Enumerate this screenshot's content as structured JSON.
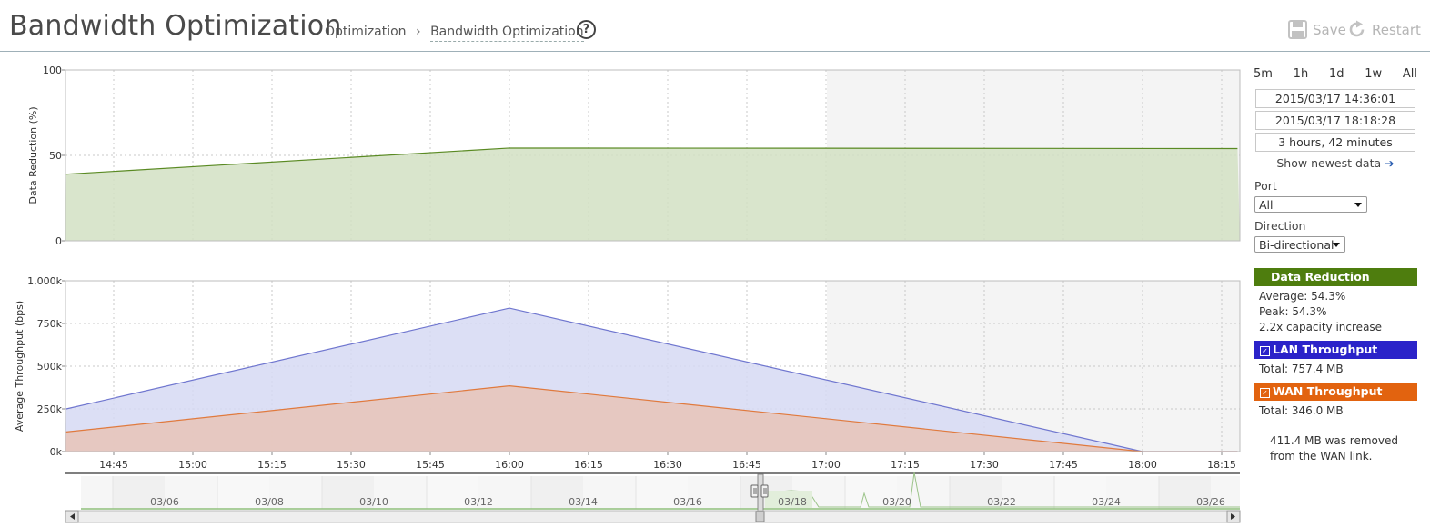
{
  "header": {
    "title": "Bandwidth Optimization",
    "breadcrumb": [
      "Optimization",
      "Bandwidth Optimization"
    ],
    "breadcrumb_separator": "›",
    "help_glyph": "?",
    "save_label": "Save",
    "restart_label": "Restart"
  },
  "time_controls": {
    "ranges": [
      "5m",
      "1h",
      "1d",
      "1w",
      "All"
    ],
    "start": "2015/03/17 14:36:01",
    "end": "2015/03/17 18:18:28",
    "duration": "3 hours, 42 minutes",
    "show_newest": "Show newest data",
    "show_newest_arrow": "➔"
  },
  "filters": {
    "port_label": "Port",
    "port_value": "All",
    "direction_label": "Direction",
    "direction_value": "Bi-directional"
  },
  "legend": {
    "data_reduction": {
      "title": "Data Reduction",
      "color": "#4e7d0e",
      "lines": [
        "Average: 54.3%",
        "Peak: 54.3%",
        "2.2x capacity increase"
      ]
    },
    "lan": {
      "title": "LAN Throughput",
      "color": "#2b23c9",
      "total": "Total: 757.4 MB",
      "checked": true
    },
    "wan": {
      "title": "WAN Throughput",
      "color": "#e2630f",
      "total": "Total: 346.0 MB",
      "checked": true
    },
    "checkbox_glyph": "✓",
    "removed_note": "411.4 MB was removed from the WAN link."
  },
  "chart_data": [
    {
      "type": "area",
      "ylabel": "Data Reduction (%)",
      "ylim": [
        0,
        100
      ],
      "yticks": [
        0,
        50,
        100
      ],
      "ytick_labels": [
        "0",
        "50",
        "100"
      ],
      "x": [
        "14:36",
        "16:00",
        "18:18"
      ],
      "series": [
        {
          "values": [
            39,
            54.3,
            54
          ],
          "color": "#5a8a23",
          "fill": "#d2e1c3"
        }
      ],
      "grid": true
    },
    {
      "type": "area",
      "ylabel": "Average Throughput (bps)",
      "ylim": [
        0,
        1000000
      ],
      "yticks": [
        0,
        250000,
        500000,
        750000,
        1000000
      ],
      "ytick_labels": [
        "0k",
        "250k",
        "500k",
        "750k",
        "1,000k"
      ],
      "xtick_labels": [
        "14:45",
        "15:00",
        "15:15",
        "15:30",
        "15:45",
        "16:00",
        "16:15",
        "16:30",
        "16:45",
        "17:00",
        "17:15",
        "17:30",
        "17:45",
        "18:00",
        "18:15"
      ],
      "x": [
        "14:36",
        "16:00",
        "18:00",
        "18:18"
      ],
      "series": [
        {
          "name": "LAN Throughput",
          "values": [
            250000,
            840000,
            0,
            0
          ],
          "color": "#6f76cf",
          "fill": "#d6d9f3"
        },
        {
          "name": "WAN Throughput",
          "values": [
            115000,
            385000,
            0,
            0
          ],
          "color": "#e07a3e",
          "fill": "#e8c4b7"
        }
      ],
      "grid": true
    },
    {
      "type": "area",
      "xtick_labels": [
        "03/06",
        "03/08",
        "03/10",
        "03/12",
        "03/14",
        "03/16",
        "03/18",
        "03/20",
        "03/22",
        "03/24",
        "03/26"
      ]
    }
  ]
}
